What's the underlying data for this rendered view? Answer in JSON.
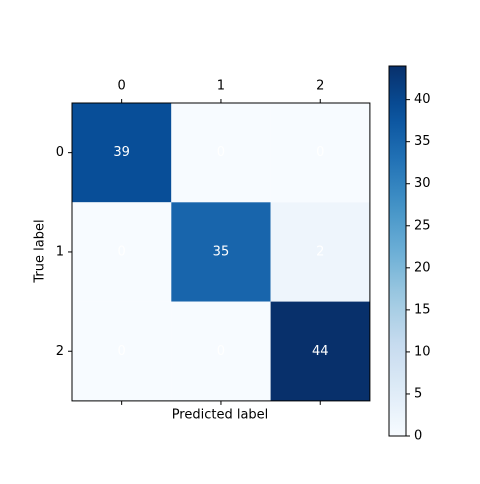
{
  "chart_data": {
    "type": "heatmap",
    "xlabel": "Predicted label",
    "ylabel": "True label",
    "x_categories": [
      "0",
      "1",
      "2"
    ],
    "y_categories": [
      "0",
      "1",
      "2"
    ],
    "values": [
      [
        39,
        0,
        0
      ],
      [
        0,
        35,
        2
      ],
      [
        0,
        0,
        44
      ]
    ],
    "colormap": "Blues",
    "text_color": "#ffffff",
    "colorbar": {
      "lim": [
        0,
        44
      ],
      "ticks": [
        0,
        5,
        10,
        15,
        20,
        25,
        30,
        35,
        40
      ]
    }
  }
}
